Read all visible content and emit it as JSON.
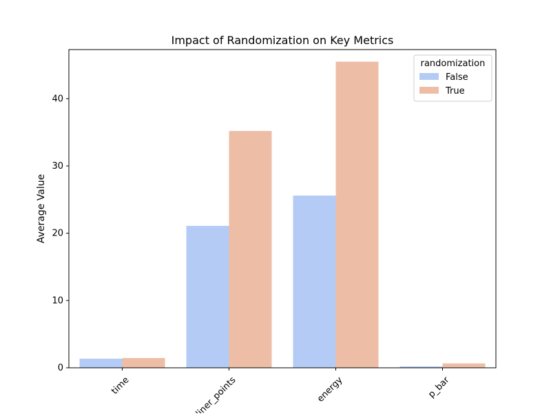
{
  "chart_data": {
    "type": "bar",
    "title": "Impact of Randomization on Key Metrics",
    "xlabel": "",
    "ylabel": "Average Value",
    "categories": [
      "time",
      "inliner_points",
      "energy",
      "p_bar"
    ],
    "series": [
      {
        "name": "False",
        "color": "#b4cbf5",
        "values": [
          1.35,
          21.1,
          25.6,
          0.2
        ]
      },
      {
        "name": "True",
        "color": "#eebda6",
        "values": [
          1.45,
          35.2,
          45.5,
          0.65
        ]
      }
    ],
    "ylim": [
      0,
      47.3
    ],
    "yticks": [
      0,
      10,
      20,
      30,
      40
    ],
    "grid": false,
    "legend": {
      "title": "randomization",
      "placement": "top-right"
    }
  }
}
